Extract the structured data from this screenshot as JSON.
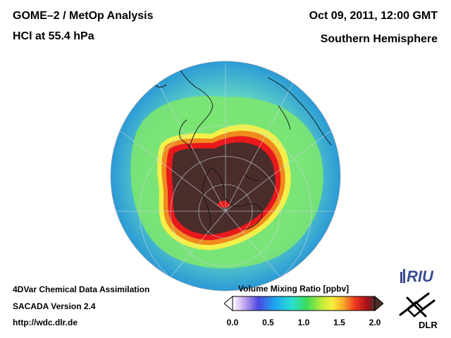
{
  "header": {
    "title_line1": "GOME–2 / MetOp Analysis",
    "title_line2": "HCl at 55.4 hPa",
    "date": "Oct 09, 2011, 12:00 GMT",
    "region": "Southern Hemisphere"
  },
  "footer": {
    "line1": "4DVar Chemical Data Assimilation",
    "line2": "SACADA Version 2.4",
    "line3": "http://wdc.dlr.de"
  },
  "colorbar": {
    "title": "Volume Mixing Ratio [ppbv]",
    "ticks": [
      "0.0",
      "0.5",
      "1.0",
      "1.5",
      "2.0"
    ],
    "tick_values": [
      0.0,
      0.5,
      1.0,
      1.5,
      2.0
    ],
    "range": [
      0.0,
      2.0
    ]
  },
  "map": {
    "projection": "orthographic",
    "center": "South Pole",
    "colors": {
      "ocean_bg": "#2a9ad6",
      "low_lat": "#5fd2c5",
      "mid_lat": "#7ee86a",
      "collar": "#f2f04a",
      "ring_orange": "#f08a1e",
      "ring_red": "#e8191c",
      "vortex_core": "#4a2d2b"
    }
  },
  "logos": {
    "riu": "RIU",
    "dlr": "DLR"
  }
}
